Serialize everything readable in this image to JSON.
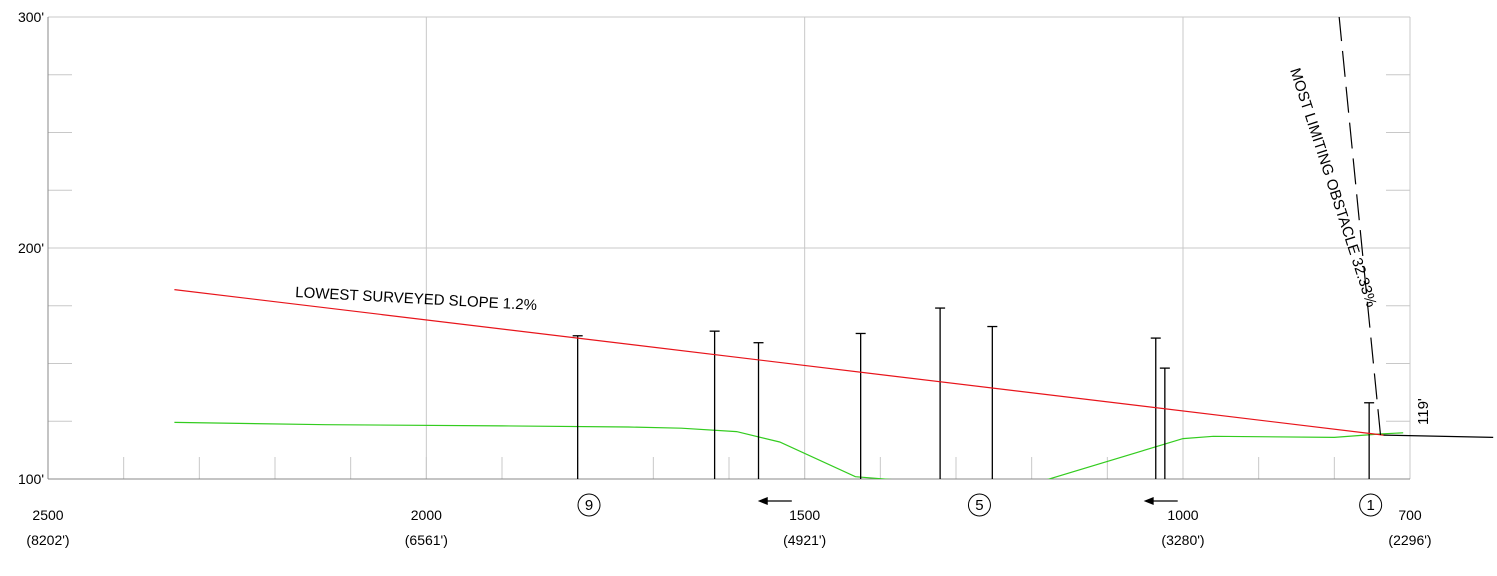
{
  "chart_data": {
    "type": "line",
    "x_axis": {
      "reversed": true,
      "range": [
        2500,
        700
      ],
      "ticks": [
        {
          "value": 2500,
          "label": "2500",
          "sublabel": "(8202')"
        },
        {
          "value": 2000,
          "label": "2000",
          "sublabel": "(6561')"
        },
        {
          "value": 1500,
          "label": "1500",
          "sublabel": "(4921')"
        },
        {
          "value": 1000,
          "label": "1000",
          "sublabel": "(3280')"
        },
        {
          "value": 700,
          "label": "700",
          "sublabel": "(2296')"
        }
      ],
      "minor_tick_step": 100,
      "major_gridlines": [
        2000,
        1500,
        1000
      ]
    },
    "y_axis": {
      "range": [
        100,
        300
      ],
      "ticks": [
        {
          "value": 100,
          "label": "100'"
        },
        {
          "value": 200,
          "label": "200'"
        },
        {
          "value": 300,
          "label": "300'"
        }
      ],
      "minor_tick_step": 25
    },
    "grid": true,
    "series": [
      {
        "name": "LOWEST SURVEYED SLOPE 1.2%",
        "color": "#e8141b",
        "style": "solid",
        "points": [
          [
            2333,
            182
          ],
          [
            735,
            119
          ]
        ]
      },
      {
        "name": "MOST LIMITING OBSTACLE 32.33%",
        "color": "#000000",
        "style": "dashed",
        "points": [
          [
            739,
            119
          ],
          [
            806,
            341
          ]
        ]
      },
      {
        "color": "#33cc1f",
        "style": "solid",
        "points": [
          [
            2333,
            124.5
          ],
          [
            2133,
            123.5
          ],
          [
            1900,
            123
          ],
          [
            1733,
            122.5
          ],
          [
            1663,
            122
          ],
          [
            1590,
            120.5
          ],
          [
            1533,
            116
          ],
          [
            1433,
            101
          ],
          [
            1375,
            99.5
          ],
          [
            1262,
            93
          ],
          [
            1197,
            98
          ],
          [
            1000,
            117.5
          ],
          [
            960,
            118.5
          ],
          [
            800,
            118
          ],
          [
            740,
            119.5
          ],
          [
            709,
            120
          ]
        ]
      },
      {
        "color": "#000000",
        "style": "solid",
        "points": [
          [
            735,
            119
          ],
          [
            590,
            118
          ]
        ]
      }
    ],
    "obstacles": [
      {
        "x": 1800,
        "top": 162
      },
      {
        "x": 1619,
        "top": 164
      },
      {
        "x": 1561,
        "top": 159
      },
      {
        "x": 1426,
        "top": 163
      },
      {
        "x": 1321,
        "top": 174
      },
      {
        "x": 1252,
        "top": 166
      },
      {
        "x": 1036,
        "top": 161
      },
      {
        "x": 1024,
        "top": 148
      },
      {
        "x": 754,
        "top": 133
      }
    ],
    "annotations": [
      {
        "text": "LOWEST SURVEYED SLOPE 1.2%"
      },
      {
        "text": "MOST LIMITING OBSTACLE 32.33%"
      },
      {
        "text": "119'"
      }
    ],
    "markers": [
      {
        "label": "9",
        "x": 1785
      },
      {
        "label": "5",
        "x": 1269
      },
      {
        "label": "1",
        "x": 752
      }
    ],
    "arrows": [
      {
        "direction": "left",
        "x_from": 1517,
        "x_to": 1562
      },
      {
        "direction": "left",
        "x_from": 1007,
        "x_to": 1052
      }
    ]
  }
}
